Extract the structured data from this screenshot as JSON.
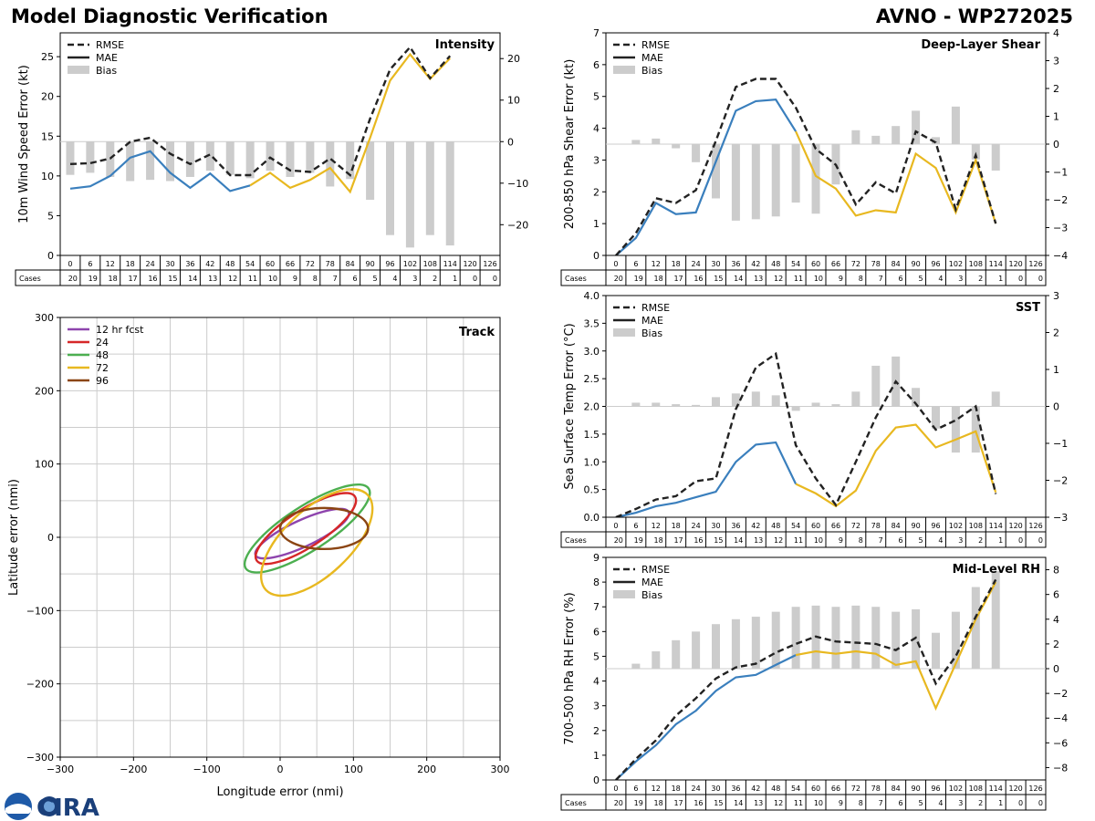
{
  "header": {
    "title": "Model Diagnostic Verification",
    "model_storm": "AVNO - WP272025"
  },
  "colors": {
    "rmse": "#222222",
    "mae_blue": "#3a7fbd",
    "mae_yellow": "#e8b820",
    "bias": "#cccccc",
    "grid": "#cccccc",
    "track_12": "#8e44ad",
    "track_24": "#d62728",
    "track_48": "#4caf50",
    "track_72": "#e8b820",
    "track_96": "#8b4513"
  },
  "hours": [
    0,
    6,
    12,
    18,
    24,
    30,
    36,
    42,
    48,
    54,
    60,
    66,
    72,
    78,
    84,
    90,
    96,
    102,
    108,
    114,
    120,
    126
  ],
  "cases": [
    20,
    19,
    18,
    17,
    16,
    15,
    14,
    13,
    12,
    11,
    10,
    9,
    8,
    7,
    6,
    5,
    4,
    3,
    2,
    1,
    0,
    0
  ],
  "cases_label": "Cases",
  "legend_labels": {
    "rmse": "RMSE",
    "mae": "MAE",
    "bias": "Bias"
  },
  "logo": {
    "text": "CIRA",
    "icon": "noaa-seal-icon"
  },
  "chart_data": [
    {
      "id": "intensity",
      "type": "line",
      "title": "Intensity",
      "ylabel": "10m Wind Speed Error (kt)",
      "ylim": [
        0,
        28
      ],
      "yticks": [
        0,
        5,
        10,
        15,
        20,
        25
      ],
      "y2lim": [
        -27.4,
        26.2
      ],
      "y2ticks": [
        -20,
        -10,
        0,
        10,
        20
      ],
      "rmse": [
        11.5,
        11.6,
        12.2,
        14.3,
        14.8,
        12.8,
        11.5,
        12.7,
        10.1,
        10.1,
        12.3,
        10.7,
        10.5,
        12.2,
        10.1,
        17.2,
        23.4,
        26.2,
        22.3,
        25.1,
        null,
        null
      ],
      "mae": [
        8.4,
        8.7,
        10.0,
        12.3,
        13.1,
        10.4,
        8.5,
        10.3,
        8.1,
        8.8,
        10.4,
        8.5,
        9.5,
        11.0,
        8.0,
        14.8,
        22.0,
        25.3,
        22.2,
        24.8,
        null,
        null
      ],
      "bias": [
        -8,
        -7.5,
        -8.5,
        -9.5,
        -9.2,
        -9.5,
        -8.5,
        -7,
        -8,
        -8.8,
        -7,
        -8.5,
        -7.5,
        -10.8,
        -9,
        -14,
        -22.5,
        -25.5,
        -22.5,
        -25,
        null,
        null
      ]
    },
    {
      "id": "shear",
      "type": "line",
      "title": "Deep-Layer Shear",
      "ylabel": "200-850 hPa Shear Error (kt)",
      "ylim": [
        0,
        7
      ],
      "yticks": [
        0,
        1,
        2,
        3,
        4,
        5,
        6,
        7
      ],
      "y2lim": [
        -4,
        4
      ],
      "y2ticks": [
        -4,
        -3,
        -2,
        -1,
        0,
        1,
        2,
        3,
        4
      ],
      "rmse": [
        0,
        0.7,
        1.8,
        1.65,
        2.05,
        3.6,
        5.3,
        5.55,
        5.55,
        4.65,
        3.35,
        2.85,
        1.6,
        2.3,
        1.95,
        3.9,
        3.55,
        1.45,
        3.15,
        1.0,
        null,
        null
      ],
      "mae": [
        0,
        0.55,
        1.65,
        1.3,
        1.35,
        2.95,
        4.55,
        4.85,
        4.9,
        3.9,
        2.5,
        2.1,
        1.25,
        1.42,
        1.35,
        3.2,
        2.75,
        1.35,
        3.0,
        1.0,
        null,
        null
      ],
      "bias": [
        0,
        0.15,
        0.2,
        -0.15,
        -0.65,
        -1.95,
        -2.75,
        -2.7,
        -2.6,
        -2.1,
        -2.5,
        -1.45,
        0.5,
        0.3,
        0.65,
        1.2,
        0.25,
        1.35,
        -0.55,
        -0.95,
        null,
        null
      ]
    },
    {
      "id": "sst",
      "type": "line",
      "title": "SST",
      "ylabel": "Sea Surface Temp Error (°C)",
      "ylim": [
        0,
        4
      ],
      "yticks": [
        0.0,
        0.5,
        1.0,
        1.5,
        2.0,
        2.5,
        3.0,
        3.5,
        4.0
      ],
      "y2lim": [
        -3,
        3
      ],
      "y2ticks": [
        -3,
        -2,
        -1,
        0,
        1,
        2,
        3
      ],
      "rmse": [
        0,
        0.15,
        0.32,
        0.38,
        0.65,
        0.7,
        1.95,
        2.7,
        2.95,
        1.3,
        0.7,
        0.22,
        1.0,
        1.8,
        2.45,
        2.05,
        1.58,
        1.75,
        2.0,
        0.42,
        null,
        null
      ],
      "mae": [
        0,
        0.08,
        0.2,
        0.26,
        0.36,
        0.46,
        1.0,
        1.31,
        1.35,
        0.6,
        0.43,
        0.2,
        0.48,
        1.2,
        1.62,
        1.67,
        1.26,
        1.4,
        1.55,
        0.45,
        null,
        null
      ],
      "bias": [
        0,
        0.1,
        0.1,
        0.06,
        0.04,
        0.25,
        0.35,
        0.4,
        0.3,
        -0.12,
        0.1,
        0.06,
        0.4,
        1.1,
        1.35,
        0.5,
        -0.6,
        -1.25,
        -1.25,
        0.4,
        null,
        null
      ]
    },
    {
      "id": "rh",
      "type": "line",
      "title": "Mid-Level RH",
      "ylabel": "700-500 hPa RH Error (%)",
      "ylim": [
        0,
        9
      ],
      "yticks": [
        0,
        1,
        2,
        3,
        4,
        5,
        6,
        7,
        8,
        9
      ],
      "y2lim": [
        -9,
        9
      ],
      "y2ticks": [
        -8,
        -6,
        -4,
        -2,
        0,
        2,
        4,
        6,
        8
      ],
      "rmse": [
        0,
        0.85,
        1.6,
        2.6,
        3.3,
        4.1,
        4.55,
        4.7,
        5.15,
        5.5,
        5.8,
        5.6,
        5.55,
        5.5,
        5.25,
        5.75,
        3.9,
        5.0,
        6.6,
        8.1,
        null,
        null
      ],
      "mae": [
        0,
        0.75,
        1.4,
        2.25,
        2.8,
        3.6,
        4.15,
        4.25,
        4.65,
        5.05,
        5.2,
        5.1,
        5.2,
        5.1,
        4.65,
        4.8,
        2.9,
        4.7,
        6.5,
        8.0,
        null,
        null
      ],
      "bias": [
        0,
        0.4,
        1.4,
        2.3,
        3.0,
        3.6,
        4.0,
        4.2,
        4.6,
        5.0,
        5.1,
        5.0,
        5.1,
        5.0,
        4.6,
        4.8,
        2.9,
        4.6,
        6.6,
        7.9,
        null,
        null
      ]
    },
    {
      "id": "track",
      "type": "line",
      "title": "Track",
      "xlabel": "Longitude error (nmi)",
      "ylabel": "Latitude error (nmi)",
      "xlim": [
        -300,
        300
      ],
      "ylim": [
        -300,
        300
      ],
      "xticks": [
        -300,
        -200,
        -100,
        0,
        100,
        200,
        300
      ],
      "yticks": [
        -300,
        -200,
        -100,
        0,
        100,
        200,
        300
      ],
      "series": [
        {
          "name": "12 hr fcst",
          "cx": 30,
          "cy": 5,
          "rx": 70,
          "ry": 18,
          "angle": 25
        },
        {
          "name": "24",
          "cx": 35,
          "cy": 12,
          "rx": 80,
          "ry": 25,
          "angle": 33
        },
        {
          "name": "48",
          "cx": 37,
          "cy": 12,
          "rx": 100,
          "ry": 30,
          "angle": 33
        },
        {
          "name": "72",
          "cx": 50,
          "cy": -7,
          "rx": 95,
          "ry": 45,
          "angle": 43
        },
        {
          "name": "96",
          "cx": 60,
          "cy": 12,
          "rx": 60,
          "ry": 28,
          "angle": 0
        }
      ]
    }
  ]
}
